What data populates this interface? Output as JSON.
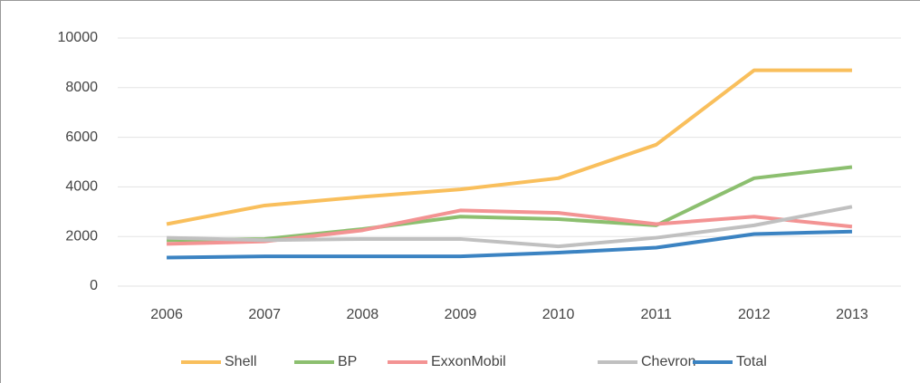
{
  "chart_data": {
    "type": "line",
    "categories": [
      "2006",
      "2007",
      "2008",
      "2009",
      "2010",
      "2011",
      "2012",
      "2013"
    ],
    "series": [
      {
        "name": "Shell",
        "color": "#f9bf5c",
        "values": [
          2500,
          3250,
          3600,
          3900,
          4350,
          5700,
          8700,
          8700
        ]
      },
      {
        "name": "BP",
        "color": "#8cbf6f",
        "values": [
          1850,
          1900,
          2300,
          2800,
          2700,
          2450,
          4350,
          4800
        ]
      },
      {
        "name": "ExxonMobil",
        "color": "#f39393",
        "values": [
          1700,
          1800,
          2250,
          3050,
          2950,
          2500,
          2800,
          2400
        ]
      },
      {
        "name": "Chevron",
        "color": "#c0c0c0",
        "values": [
          1950,
          1850,
          1900,
          1900,
          1600,
          1950,
          2450,
          3200
        ]
      },
      {
        "name": "Total",
        "color": "#3b83c2",
        "values": [
          1150,
          1200,
          1200,
          1200,
          1350,
          1550,
          2100,
          2200
        ]
      }
    ],
    "ylim": [
      0,
      10000
    ],
    "yticks": [
      0,
      2000,
      4000,
      6000,
      8000,
      10000
    ],
    "grid": true,
    "legend": "bottom"
  }
}
